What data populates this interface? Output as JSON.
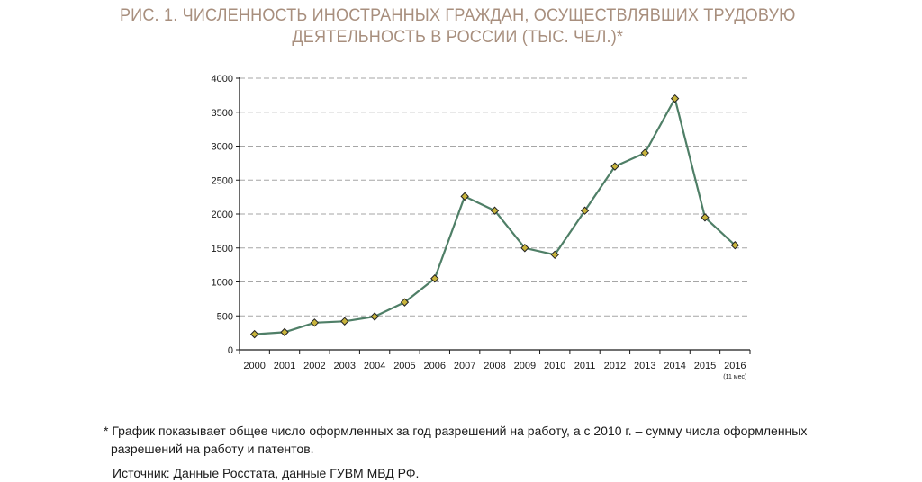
{
  "title": {
    "line1": "РИС. 1. ЧИСЛЕННОСТЬ ИНОСТРАННЫХ ГРАЖДАН, ОСУЩЕСТВЛЯВШИХ ТРУДОВУЮ",
    "line2": "ДЕЯТЕЛЬНОСТЬ В РОССИИ (ТЫС. ЧЕЛ.)*"
  },
  "chart_data": {
    "type": "line",
    "x": [
      "2000",
      "2001",
      "2002",
      "2003",
      "2004",
      "2005",
      "2006",
      "2007",
      "2008",
      "2009",
      "2010",
      "2011",
      "2012",
      "2013",
      "2014",
      "2015",
      "2016"
    ],
    "x_note": "(11 мес)",
    "series": [
      {
        "values": [
          230,
          260,
          400,
          420,
          490,
          700,
          1050,
          2260,
          2050,
          1500,
          1400,
          2050,
          2700,
          2900,
          3700,
          1950,
          1540
        ]
      }
    ],
    "xlabel": "",
    "ylabel": "",
    "ylim": [
      0,
      4000
    ],
    "yticks": [
      0,
      500,
      1000,
      1500,
      2000,
      2500,
      3000,
      3500,
      4000
    ],
    "grid": true,
    "legend": "none",
    "colors": {
      "line": "#4f7f67",
      "marker": "#c8b43c",
      "marker_stroke": "#222222",
      "grid": "#a6a6a6",
      "title": "#a88f7e"
    }
  },
  "footnote": {
    "line1": "* График показывает общее число оформленных за год разрешений на работу, а с 2010 г. – сумму числа оформленных",
    "line2": "разрешений на работу и патентов.",
    "source": "Источник: Данные Росстата, данные ГУВМ МВД РФ."
  }
}
